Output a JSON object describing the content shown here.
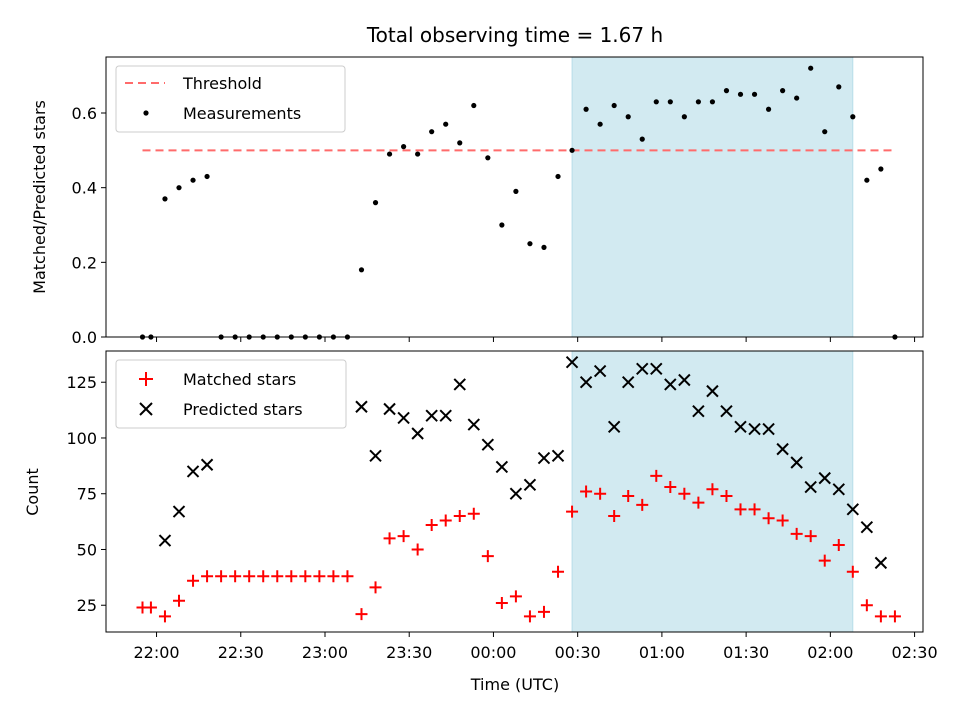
{
  "chart_data": [
    {
      "type": "scatter",
      "title": "Total observing time = 1.67 h",
      "xlabel": "",
      "ylabel": "Matched/Predicted stars",
      "ylim": [
        0,
        0.75
      ],
      "yticks": [
        0,
        0.2,
        0.4,
        0.6
      ],
      "ytick_labels": [
        "0.0",
        "0.2",
        "0.4",
        "0.6"
      ],
      "grid": false,
      "legend_position": "top-left",
      "highlight_window": {
        "start": "00:28",
        "end": "02:08",
        "color": "#add8e6"
      },
      "threshold": {
        "name": "Threshold",
        "value": 0.5,
        "from": "21:55",
        "to": "02:22",
        "color": "#ff6b6b"
      },
      "series": [
        {
          "name": "Measurements",
          "color": "#000000",
          "x": [
            "21:55",
            "21:58",
            "22:03",
            "22:08",
            "22:13",
            "22:18",
            "22:23",
            "22:28",
            "22:33",
            "22:38",
            "22:43",
            "22:48",
            "22:53",
            "22:58",
            "23:03",
            "23:08",
            "23:13",
            "23:18",
            "23:23",
            "23:28",
            "23:33",
            "23:38",
            "23:43",
            "23:48",
            "23:53",
            "23:58",
            "00:03",
            "00:08",
            "00:13",
            "00:18",
            "00:23",
            "00:28",
            "00:33",
            "00:38",
            "00:43",
            "00:48",
            "00:53",
            "00:58",
            "01:03",
            "01:08",
            "01:13",
            "01:18",
            "01:23",
            "01:28",
            "01:33",
            "01:38",
            "01:43",
            "01:48",
            "01:53",
            "01:58",
            "02:03",
            "02:08",
            "02:13",
            "02:18",
            "02:23"
          ],
          "y": [
            0.0,
            0.0,
            0.37,
            0.4,
            0.42,
            0.43,
            0.0,
            0.0,
            0.0,
            0.0,
            0.0,
            0.0,
            0.0,
            0.0,
            0.0,
            0.0,
            0.18,
            0.36,
            0.49,
            0.51,
            0.49,
            0.55,
            0.57,
            0.52,
            0.62,
            0.48,
            0.3,
            0.39,
            0.25,
            0.24,
            0.43,
            0.5,
            0.61,
            0.57,
            0.62,
            0.59,
            0.53,
            0.63,
            0.63,
            0.59,
            0.63,
            0.63,
            0.66,
            0.65,
            0.65,
            0.61,
            0.66,
            0.64,
            0.72,
            0.55,
            0.67,
            0.59,
            0.42,
            0.45,
            0.0
          ]
        }
      ]
    },
    {
      "type": "scatter",
      "title": "",
      "xlabel": "Time (UTC)",
      "ylabel": "Count",
      "xlim": [
        "21:42",
        "02:33"
      ],
      "ylim": [
        13,
        139
      ],
      "xticks": [
        "22:00",
        "22:30",
        "23:00",
        "23:30",
        "00:00",
        "00:30",
        "01:00",
        "01:30",
        "02:00",
        "02:30"
      ],
      "yticks": [
        25,
        50,
        75,
        100,
        125
      ],
      "grid": false,
      "legend_position": "top-left",
      "highlight_window": {
        "start": "00:28",
        "end": "02:08",
        "color": "#add8e6"
      },
      "series": [
        {
          "name": "Matched stars",
          "marker": "plus",
          "color": "#ff0000",
          "x": [
            "21:55",
            "21:58",
            "22:03",
            "22:08",
            "22:13",
            "22:18",
            "22:23",
            "22:28",
            "22:33",
            "22:38",
            "22:43",
            "22:48",
            "22:53",
            "22:58",
            "23:03",
            "23:08",
            "23:13",
            "23:18",
            "23:23",
            "23:28",
            "23:33",
            "23:38",
            "23:43",
            "23:48",
            "23:53",
            "23:58",
            "00:03",
            "00:08",
            "00:13",
            "00:18",
            "00:23",
            "00:28",
            "00:33",
            "00:38",
            "00:43",
            "00:48",
            "00:53",
            "00:58",
            "01:03",
            "01:08",
            "01:13",
            "01:18",
            "01:23",
            "01:28",
            "01:33",
            "01:38",
            "01:43",
            "01:48",
            "01:53",
            "01:58",
            "02:03",
            "02:08",
            "02:13",
            "02:18",
            "02:23"
          ],
          "y": [
            24,
            24,
            20,
            27,
            36,
            38,
            38,
            38,
            38,
            38,
            38,
            38,
            38,
            38,
            38,
            38,
            21,
            33,
            55,
            56,
            50,
            61,
            63,
            65,
            66,
            47,
            26,
            29,
            20,
            22,
            40,
            67,
            76,
            75,
            65,
            74,
            70,
            83,
            78,
            75,
            71,
            77,
            74,
            68,
            68,
            64,
            63,
            57,
            56,
            45,
            52,
            40,
            25,
            20,
            20
          ]
        },
        {
          "name": "Predicted stars",
          "marker": "x",
          "color": "#000000",
          "x": [
            "22:03",
            "22:08",
            "22:13",
            "22:18",
            "23:13",
            "23:18",
            "23:23",
            "23:28",
            "23:33",
            "23:38",
            "23:43",
            "23:48",
            "23:53",
            "23:58",
            "00:03",
            "00:08",
            "00:13",
            "00:18",
            "00:23",
            "00:28",
            "00:33",
            "00:38",
            "00:43",
            "00:48",
            "00:53",
            "00:58",
            "01:03",
            "01:08",
            "01:13",
            "01:18",
            "01:23",
            "01:28",
            "01:33",
            "01:38",
            "01:43",
            "01:48",
            "01:53",
            "01:58",
            "02:03",
            "02:08",
            "02:13",
            "02:18"
          ],
          "y": [
            54,
            67,
            85,
            88,
            114,
            92,
            113,
            109,
            102,
            110,
            110,
            124,
            106,
            97,
            87,
            75,
            79,
            91,
            92,
            134,
            125,
            130,
            105,
            125,
            131,
            131,
            124,
            126,
            112,
            121,
            112,
            105,
            104,
            104,
            95,
            89,
            78,
            82,
            77,
            68,
            60,
            44
          ]
        }
      ]
    }
  ]
}
